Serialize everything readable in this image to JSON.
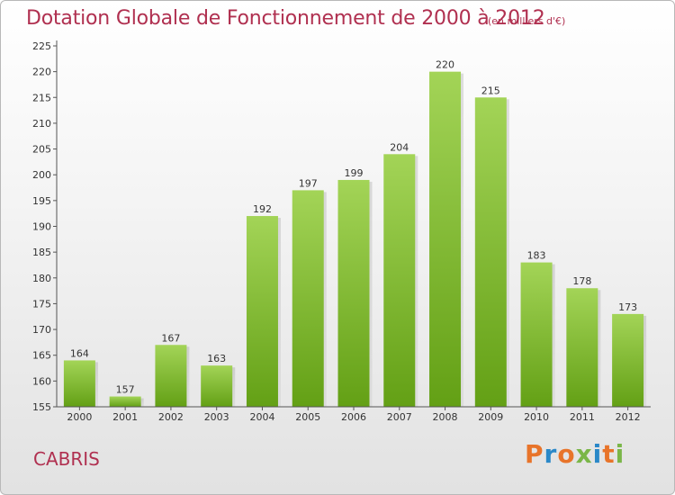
{
  "chart_data": {
    "type": "bar",
    "title": "Dotation Globale de Fonctionnement de 2000 à 2012",
    "subtitle": "(en milliers d'€)",
    "categories": [
      "2000",
      "2001",
      "2002",
      "2003",
      "2004",
      "2005",
      "2006",
      "2007",
      "2008",
      "2009",
      "2010",
      "2011",
      "2012"
    ],
    "values": [
      164,
      157,
      167,
      163,
      192,
      197,
      199,
      204,
      220,
      215,
      183,
      178,
      173
    ],
    "ylim": [
      155,
      225
    ],
    "yticks": [
      155,
      160,
      165,
      170,
      175,
      180,
      185,
      190,
      195,
      200,
      205,
      210,
      215,
      220,
      225
    ],
    "grid": false,
    "legend": "none",
    "bar_color": "#6fa820",
    "bar_color_light": "#9fd04f"
  },
  "footer": {
    "commune": "CABRIS",
    "logo_text": "Proxiti",
    "logo_colors": [
      "#e8742a",
      "#2a88c8",
      "#e8742a",
      "#7ab648",
      "#2a88c8",
      "#e8742a",
      "#7ab648"
    ]
  },
  "colors": {
    "title": "#b03050"
  }
}
